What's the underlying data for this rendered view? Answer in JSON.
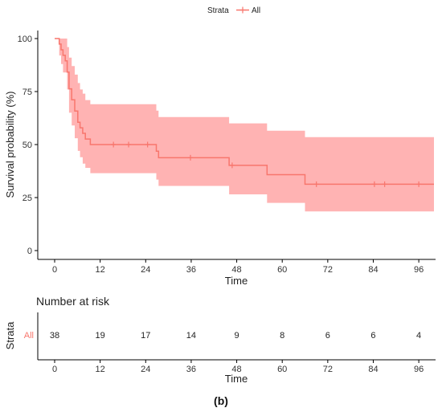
{
  "chart_data": [
    {
      "type": "line",
      "subtype": "kaplan-meier survival curve",
      "legend": {
        "title": "Strata",
        "position": "top",
        "entries": [
          {
            "label": "All",
            "color": "#f8766d"
          }
        ]
      },
      "xlabel": "Time",
      "ylabel": "Survival probability (%)",
      "xlim": [
        0,
        100
      ],
      "ylim": [
        0,
        100
      ],
      "xticks": [
        0,
        12,
        24,
        36,
        48,
        60,
        72,
        84,
        96
      ],
      "yticks": [
        0,
        25,
        50,
        75,
        100
      ],
      "grid": false,
      "series": [
        {
          "name": "All",
          "color": "#f8766d",
          "ci_color": "#ffb3b3",
          "steps": [
            {
              "x": 0,
              "y": 100
            },
            {
              "x": 1.2,
              "y": 97.4
            },
            {
              "x": 1.7,
              "y": 94.7
            },
            {
              "x": 2.2,
              "y": 92.1
            },
            {
              "x": 2.8,
              "y": 89.5
            },
            {
              "x": 3.3,
              "y": 84.2
            },
            {
              "x": 3.8,
              "y": 76.3
            },
            {
              "x": 4.5,
              "y": 71.1
            },
            {
              "x": 5.3,
              "y": 65.8
            },
            {
              "x": 6.1,
              "y": 60.5
            },
            {
              "x": 6.7,
              "y": 57.9
            },
            {
              "x": 7.4,
              "y": 55.3
            },
            {
              "x": 8.1,
              "y": 52.6
            },
            {
              "x": 9.4,
              "y": 50.0
            },
            {
              "x": 26.8,
              "y": 46.9
            },
            {
              "x": 27.4,
              "y": 43.8
            },
            {
              "x": 46.0,
              "y": 40.2
            },
            {
              "x": 56.0,
              "y": 35.8
            },
            {
              "x": 66.0,
              "y": 31.3
            },
            {
              "x": 100,
              "y": 31.3
            }
          ],
          "ci_lower": [
            {
              "x": 0,
              "y": 100
            },
            {
              "x": 1.2,
              "y": 92
            },
            {
              "x": 1.7,
              "y": 88
            },
            {
              "x": 2.2,
              "y": 84
            },
            {
              "x": 3.3,
              "y": 76
            },
            {
              "x": 3.8,
              "y": 65
            },
            {
              "x": 4.5,
              "y": 59
            },
            {
              "x": 5.3,
              "y": 53
            },
            {
              "x": 6.1,
              "y": 47
            },
            {
              "x": 6.7,
              "y": 44
            },
            {
              "x": 7.4,
              "y": 41
            },
            {
              "x": 8.1,
              "y": 39
            },
            {
              "x": 9.4,
              "y": 36.5
            },
            {
              "x": 26.8,
              "y": 33.5
            },
            {
              "x": 27.4,
              "y": 30.5
            },
            {
              "x": 46.0,
              "y": 26.5
            },
            {
              "x": 56.0,
              "y": 22.5
            },
            {
              "x": 66.0,
              "y": 18.5
            },
            {
              "x": 100,
              "y": 18.5
            }
          ],
          "ci_upper": [
            {
              "x": 0,
              "y": 100
            },
            {
              "x": 2.8,
              "y": 100
            },
            {
              "x": 3.3,
              "y": 96
            },
            {
              "x": 3.8,
              "y": 91
            },
            {
              "x": 4.5,
              "y": 87
            },
            {
              "x": 5.3,
              "y": 83
            },
            {
              "x": 6.1,
              "y": 79
            },
            {
              "x": 6.7,
              "y": 76
            },
            {
              "x": 7.4,
              "y": 74
            },
            {
              "x": 8.1,
              "y": 71
            },
            {
              "x": 9.4,
              "y": 69
            },
            {
              "x": 26.8,
              "y": 66
            },
            {
              "x": 27.4,
              "y": 63
            },
            {
              "x": 46.0,
              "y": 60
            },
            {
              "x": 56.0,
              "y": 56.5
            },
            {
              "x": 66.0,
              "y": 53.5
            },
            {
              "x": 100,
              "y": 53.5
            }
          ],
          "censored": [
            {
              "x": 15.5,
              "y": 50.0
            },
            {
              "x": 19.5,
              "y": 50.0
            },
            {
              "x": 24.5,
              "y": 50.0
            },
            {
              "x": 35.8,
              "y": 43.8
            },
            {
              "x": 46.8,
              "y": 40.2
            },
            {
              "x": 69.0,
              "y": 31.3
            },
            {
              "x": 84.3,
              "y": 31.3
            },
            {
              "x": 87.0,
              "y": 31.3
            },
            {
              "x": 96.0,
              "y": 31.3
            }
          ]
        }
      ]
    },
    {
      "type": "table",
      "title": "Number at risk",
      "ylabel": "Strata",
      "xlabel": "Time",
      "row_labels": [
        "All"
      ],
      "row_label_color": "#f8766d",
      "x": [
        0,
        12,
        24,
        36,
        48,
        60,
        72,
        84,
        96
      ],
      "xlim": [
        0,
        100
      ],
      "rows": [
        {
          "name": "All",
          "values": [
            38,
            19,
            17,
            14,
            9,
            8,
            6,
            6,
            4
          ]
        }
      ]
    }
  ],
  "caption": "(b)"
}
